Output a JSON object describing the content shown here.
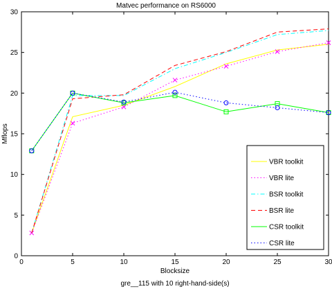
{
  "chart_data": {
    "type": "line",
    "title": "Matvec performance on RS6000",
    "xlabel": "Blocksize",
    "ylabel": "Mflops",
    "subtitle": "gre__115 with 10 right-hand-side(s)",
    "xlim": [
      0,
      30
    ],
    "ylim": [
      0,
      30
    ],
    "xticks": [
      0,
      5,
      10,
      15,
      20,
      25,
      30
    ],
    "yticks": [
      0,
      5,
      10,
      15,
      20,
      25,
      30
    ],
    "grid": false,
    "legend_position": "bottom-right",
    "x": [
      1,
      5,
      10,
      15,
      20,
      25,
      30
    ],
    "series": [
      {
        "name": "VBR toolkit",
        "color": "#ffff00",
        "dash": "solid",
        "marker": "none",
        "values": [
          2.8,
          17.1,
          18.5,
          20.8,
          23.6,
          25.3,
          26.0
        ]
      },
      {
        "name": "VBR lite",
        "color": "#ff00ff",
        "dash": "dotted",
        "marker": "x",
        "values": [
          2.8,
          16.3,
          18.3,
          21.6,
          23.3,
          25.1,
          26.2
        ]
      },
      {
        "name": "BSR toolkit",
        "color": "#00ffff",
        "dash": "dashdot",
        "marker": "none",
        "values": [
          2.8,
          19.7,
          19.7,
          23.0,
          25.0,
          27.2,
          27.7
        ]
      },
      {
        "name": "BSR lite",
        "color": "#ff0000",
        "dash": "dashed",
        "marker": "none",
        "values": [
          2.8,
          19.3,
          19.8,
          23.4,
          25.1,
          27.5,
          27.9
        ]
      },
      {
        "name": "CSR toolkit",
        "color": "#00ff00",
        "dash": "solid",
        "marker": "square",
        "values": [
          12.9,
          20.0,
          18.8,
          19.7,
          17.7,
          18.7,
          17.6
        ]
      },
      {
        "name": "CSR lite",
        "color": "#0000ff",
        "dash": "dotted",
        "marker": "circle",
        "values": [
          12.9,
          20.0,
          18.9,
          20.1,
          18.8,
          18.2,
          17.6
        ]
      }
    ]
  }
}
